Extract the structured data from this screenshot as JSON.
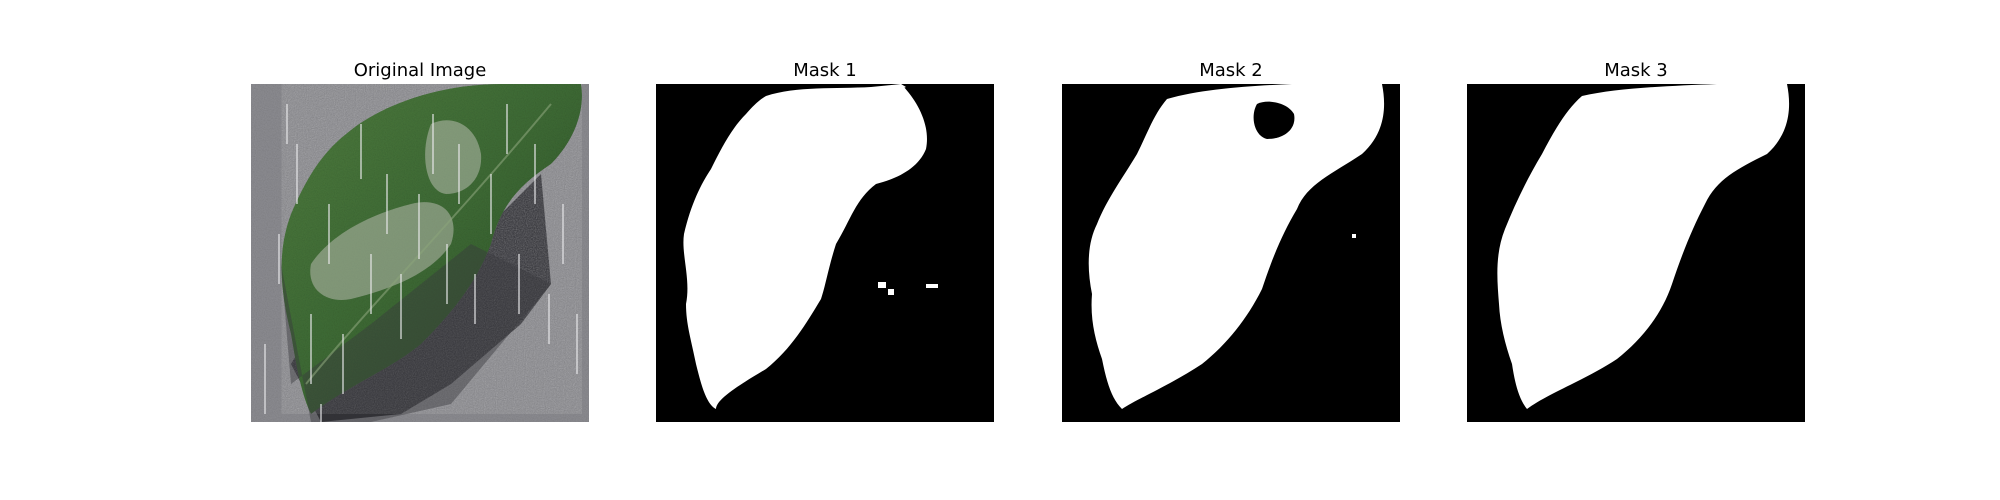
{
  "panels": [
    {
      "title": "Original Image",
      "kind": "photo"
    },
    {
      "title": "Mask 1",
      "kind": "mask"
    },
    {
      "title": "Mask 2",
      "kind": "mask"
    },
    {
      "title": "Mask 3",
      "kind": "mask"
    }
  ],
  "colors": {
    "background": "#ffffff",
    "mask_foreground": "#ffffff",
    "mask_background": "#000000",
    "leaf_green": "#3e6b35",
    "pavement_gray": "#8a8a8f"
  }
}
